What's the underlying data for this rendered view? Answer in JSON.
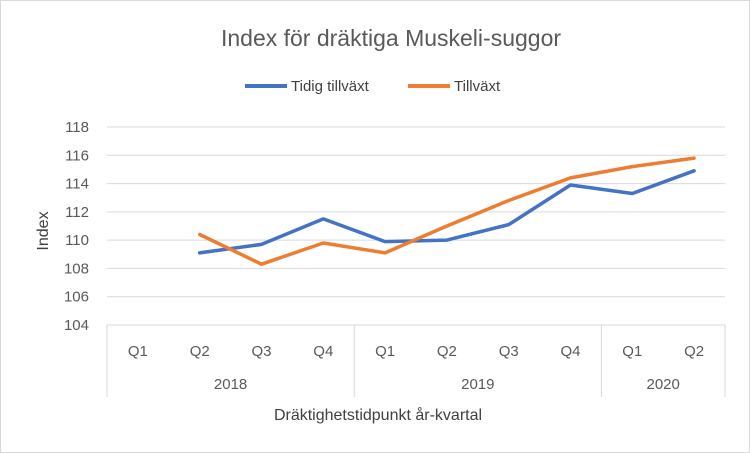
{
  "chart_data": {
    "type": "line",
    "title": "Index för dräktiga Muskeli-suggor",
    "ylabel": "Index",
    "xlabel": "Dräktighetstidpunkt år-kvartal",
    "ylim": [
      104,
      118
    ],
    "yticks": [
      104,
      106,
      108,
      110,
      112,
      114,
      116,
      118
    ],
    "grid": true,
    "legend_position": "top",
    "categories": [
      "Q1",
      "Q2",
      "Q3",
      "Q4",
      "Q1",
      "Q2",
      "Q3",
      "Q4",
      "Q1",
      "Q2"
    ],
    "years": [
      {
        "label": "2018",
        "span": 4
      },
      {
        "label": "2019",
        "span": 4
      },
      {
        "label": "2020",
        "span": 2
      }
    ],
    "series": [
      {
        "name": "Tidig tillväxt",
        "color": "#4472C4",
        "values": [
          null,
          109.1,
          109.7,
          111.5,
          109.9,
          110.0,
          111.1,
          113.9,
          113.3,
          114.9
        ]
      },
      {
        "name": "Tillväxt",
        "color": "#ED7D31",
        "values": [
          null,
          110.4,
          108.3,
          109.8,
          109.1,
          111.0,
          112.8,
          114.4,
          115.2,
          115.8
        ]
      }
    ]
  }
}
